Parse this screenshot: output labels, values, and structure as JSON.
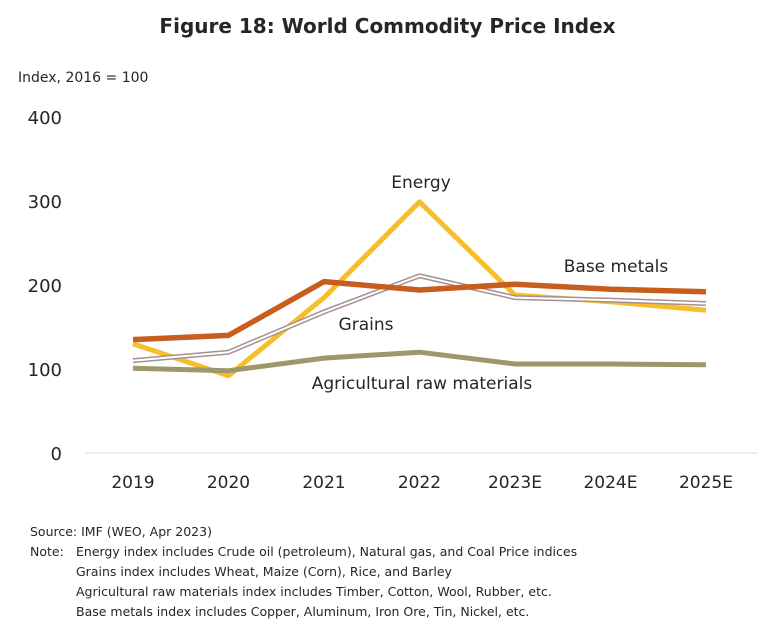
{
  "chart_data": {
    "type": "line",
    "title": "Figure 18: World Commodity Price Index",
    "ylabel": "Index, 2016 = 100",
    "xlabel": "",
    "categories": [
      "2019",
      "2020",
      "2021",
      "2022",
      "2023E",
      "2024E",
      "2025E"
    ],
    "ylim": [
      0,
      400
    ],
    "yticks": [
      0,
      100,
      200,
      300,
      400
    ],
    "grid": false,
    "legend": "inline labels",
    "series": [
      {
        "name": "Energy",
        "color": "#F7BE2A",
        "values": [
          130,
          92,
          185,
          299,
          188,
          180,
          170
        ]
      },
      {
        "name": "Grains",
        "color": "#A69090",
        "values": [
          110,
          120,
          168,
          211,
          185,
          182,
          178
        ]
      },
      {
        "name": "Base metals",
        "color": "#C85E1E",
        "values": [
          135,
          140,
          204,
          194,
          201,
          195,
          192
        ]
      },
      {
        "name": "Agricultural raw materials",
        "color": "#9E976B",
        "values": [
          101,
          98,
          113,
          120,
          106,
          106,
          105
        ]
      }
    ]
  },
  "notes": {
    "source": "Source: IMF (WEO, Apr 2023)",
    "note_label": "Note:",
    "lines": [
      "Energy index includes Crude oil (petroleum), Natural gas, and Coal Price indices",
      "Grains index includes Wheat, Maize (Corn), Rice, and Barley",
      "Agricultural raw materials index includes Timber, Cotton, Wool, Rubber, etc.",
      "Base metals index includes Copper, Aluminum, Iron Ore, Tin, Nickel, etc."
    ]
  }
}
